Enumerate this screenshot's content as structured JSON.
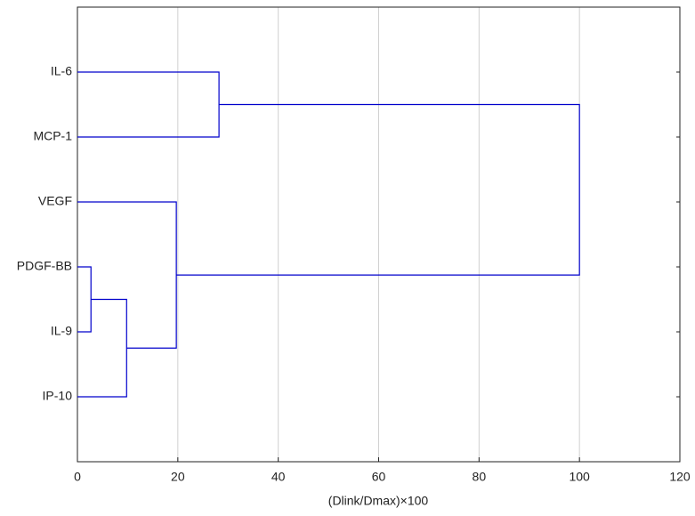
{
  "chart_data": {
    "type": "dendrogram",
    "tree": {
      "height": 100,
      "children": [
        {
          "height": 28.2,
          "children": [
            {
              "label": "IL-6"
            },
            {
              "label": "MCP-1"
            }
          ]
        },
        {
          "height": 19.7,
          "children": [
            {
              "label": "VEGF"
            },
            {
              "height": 9.8,
              "children": [
                {
                  "height": 2.7,
                  "children": [
                    {
                      "label": "PDGF-BB"
                    },
                    {
                      "label": "IL-9"
                    }
                  ]
                },
                {
                  "label": "IP-10"
                }
              ]
            }
          ]
        }
      ]
    },
    "color": "#0000cc",
    "xlabel": "(Dlink/Dmax)×100",
    "xlim": [
      0,
      120
    ],
    "xticks": [
      0,
      20,
      40,
      60,
      80,
      100,
      120
    ],
    "grid": true
  }
}
